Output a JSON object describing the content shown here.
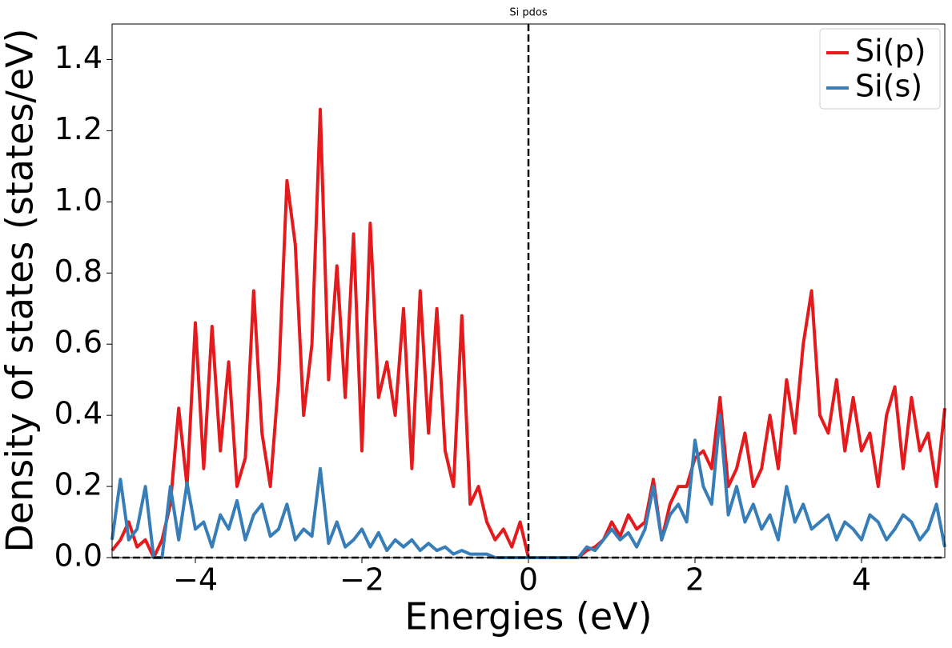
{
  "chart_data": {
    "type": "line",
    "title": "Si pdos",
    "xlabel": "Energies (eV)",
    "ylabel": "Density of states (states/eV)",
    "x": [
      -5.0,
      -4.9,
      -4.8,
      -4.7,
      -4.6,
      -4.5,
      -4.4,
      -4.3,
      -4.2,
      -4.1,
      -4.0,
      -3.9,
      -3.8,
      -3.7,
      -3.6,
      -3.5,
      -3.4,
      -3.3,
      -3.2,
      -3.1,
      -3.0,
      -2.9,
      -2.8,
      -2.7,
      -2.6,
      -2.5,
      -2.4,
      -2.3,
      -2.2,
      -2.1,
      -2.0,
      -1.9,
      -1.8,
      -1.7,
      -1.6,
      -1.5,
      -1.4,
      -1.3,
      -1.2,
      -1.1,
      -1.0,
      -0.9,
      -0.8,
      -0.7,
      -0.6,
      -0.5,
      -0.4,
      -0.3,
      -0.2,
      -0.1,
      0.0,
      0.1,
      0.2,
      0.3,
      0.4,
      0.5,
      0.6,
      0.7,
      0.8,
      0.9,
      1.0,
      1.1,
      1.2,
      1.3,
      1.4,
      1.5,
      1.6,
      1.7,
      1.8,
      1.9,
      2.0,
      2.1,
      2.2,
      2.3,
      2.4,
      2.5,
      2.6,
      2.7,
      2.8,
      2.9,
      3.0,
      3.1,
      3.2,
      3.3,
      3.4,
      3.5,
      3.6,
      3.7,
      3.8,
      3.9,
      4.0,
      4.1,
      4.2,
      4.3,
      4.4,
      4.5,
      4.6,
      4.7,
      4.8,
      4.9,
      5.0
    ],
    "series": [
      {
        "name": "Si(p)",
        "color": "#e41a1c",
        "values": [
          0.02,
          0.05,
          0.1,
          0.03,
          0.05,
          0.0,
          0.05,
          0.15,
          0.42,
          0.2,
          0.66,
          0.25,
          0.65,
          0.3,
          0.55,
          0.2,
          0.28,
          0.75,
          0.35,
          0.2,
          0.5,
          1.06,
          0.88,
          0.4,
          0.6,
          1.26,
          0.5,
          0.82,
          0.45,
          0.91,
          0.3,
          0.94,
          0.45,
          0.55,
          0.4,
          0.7,
          0.25,
          0.75,
          0.35,
          0.7,
          0.3,
          0.2,
          0.68,
          0.15,
          0.2,
          0.1,
          0.05,
          0.08,
          0.03,
          0.1,
          0,
          0,
          0,
          0,
          0,
          0,
          0,
          0.02,
          0.03,
          0.05,
          0.1,
          0.06,
          0.12,
          0.08,
          0.1,
          0.22,
          0.05,
          0.15,
          0.2,
          0.2,
          0.28,
          0.3,
          0.25,
          0.45,
          0.2,
          0.25,
          0.35,
          0.2,
          0.25,
          0.4,
          0.25,
          0.5,
          0.35,
          0.6,
          0.75,
          0.4,
          0.35,
          0.5,
          0.3,
          0.45,
          0.3,
          0.35,
          0.2,
          0.4,
          0.48,
          0.25,
          0.45,
          0.3,
          0.35,
          0.2,
          0.42
        ]
      },
      {
        "name": "Si(s)",
        "color": "#377eb8",
        "values": [
          0.05,
          0.22,
          0.05,
          0.08,
          0.2,
          0,
          0,
          0.2,
          0.05,
          0.21,
          0.08,
          0.1,
          0.03,
          0.12,
          0.08,
          0.16,
          0.05,
          0.12,
          0.15,
          0.06,
          0.08,
          0.15,
          0.05,
          0.08,
          0.06,
          0.25,
          0.04,
          0.1,
          0.03,
          0.05,
          0.08,
          0.03,
          0.07,
          0.02,
          0.05,
          0.03,
          0.05,
          0.02,
          0.04,
          0.02,
          0.03,
          0.01,
          0.02,
          0.01,
          0.01,
          0.01,
          0,
          0,
          0,
          0,
          0,
          0,
          0,
          0,
          0,
          0,
          0,
          0.03,
          0.02,
          0.05,
          0.08,
          0.05,
          0.07,
          0.03,
          0.08,
          0.2,
          0.05,
          0.12,
          0.15,
          0.1,
          0.33,
          0.2,
          0.15,
          0.4,
          0.12,
          0.2,
          0.1,
          0.15,
          0.08,
          0.12,
          0.05,
          0.2,
          0.1,
          0.15,
          0.08,
          0.1,
          0.12,
          0.05,
          0.1,
          0.08,
          0.05,
          0.12,
          0.1,
          0.05,
          0.08,
          0.12,
          0.1,
          0.05,
          0.08,
          0.15,
          0.03
        ]
      }
    ],
    "xlim": [
      -5,
      5
    ],
    "ylim": [
      0,
      1.5
    ],
    "xticks": [
      {
        "value": -4,
        "label": "−4"
      },
      {
        "value": -2,
        "label": "−2"
      },
      0,
      2,
      4
    ],
    "yticks": [
      {
        "value": 0,
        "label": "0.0"
      },
      0.2,
      0.4,
      0.6,
      0.8,
      {
        "value": 1,
        "label": "1.0"
      },
      1.2,
      1.4
    ],
    "vline": 0,
    "hline": 0,
    "legend": "upper right",
    "grid": false
  }
}
